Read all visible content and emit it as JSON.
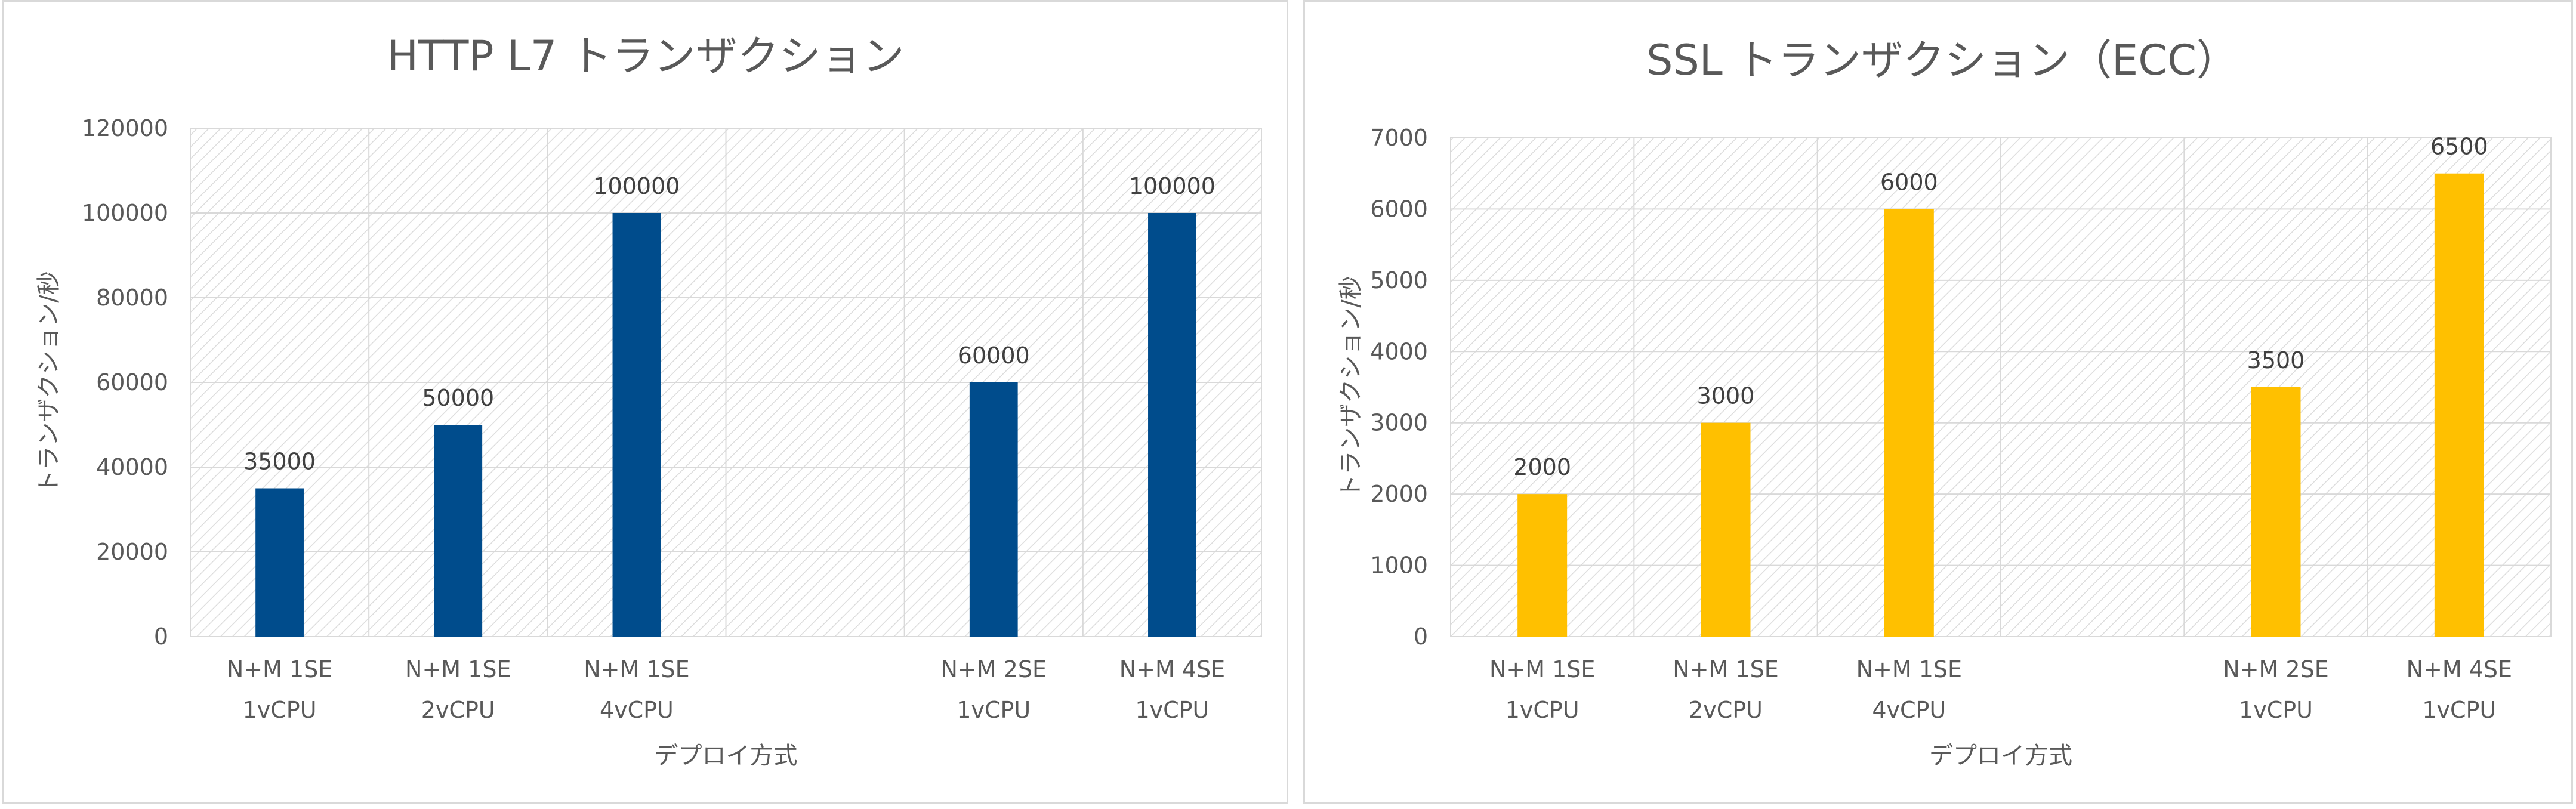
{
  "chart_data": [
    {
      "type": "bar",
      "title": "HTTP L7 トランザクション",
      "xlabel": "デプロイ方式",
      "ylabel": "トランザクション/秒",
      "ylim": [
        0,
        120000
      ],
      "yticks": [
        "0",
        "20000",
        "40000",
        "60000",
        "80000",
        "100000",
        "120000"
      ],
      "categories": [
        {
          "line1": "N+M 1SE",
          "line2": "1vCPU"
        },
        {
          "line1": "N+M 1SE",
          "line2": "2vCPU"
        },
        {
          "line1": "N+M 1SE",
          "line2": "4vCPU"
        },
        {
          "line1": "",
          "line2": ""
        },
        {
          "line1": "N+M 2SE",
          "line2": "1vCPU"
        },
        {
          "line1": "N+M 4SE",
          "line2": "1vCPU"
        }
      ],
      "values": [
        35000,
        50000,
        100000,
        null,
        60000,
        100000
      ],
      "data_labels": [
        "35000",
        "50000",
        "100000",
        "",
        "60000",
        "100000"
      ],
      "bar_color": "#004C8C",
      "grid": true,
      "plot_background": "hatched"
    },
    {
      "type": "bar",
      "title": "SSL トランザクション（ECC）",
      "xlabel": "デプロイ方式",
      "ylabel": "トランザクション/秒",
      "ylim": [
        0,
        7000
      ],
      "yticks": [
        "0",
        "1000",
        "2000",
        "3000",
        "4000",
        "5000",
        "6000",
        "7000"
      ],
      "categories": [
        {
          "line1": "N+M 1SE",
          "line2": "1vCPU"
        },
        {
          "line1": "N+M 1SE",
          "line2": "2vCPU"
        },
        {
          "line1": "N+M 1SE",
          "line2": "4vCPU"
        },
        {
          "line1": "",
          "line2": ""
        },
        {
          "line1": "N+M 2SE",
          "line2": "1vCPU"
        },
        {
          "line1": "N+M 4SE",
          "line2": "1vCPU"
        }
      ],
      "values": [
        2000,
        3000,
        6000,
        null,
        3500,
        6500
      ],
      "data_labels": [
        "2000",
        "3000",
        "6000",
        "",
        "3500",
        "6500"
      ],
      "bar_color": "#FFC000",
      "grid": true,
      "plot_background": "hatched"
    }
  ]
}
